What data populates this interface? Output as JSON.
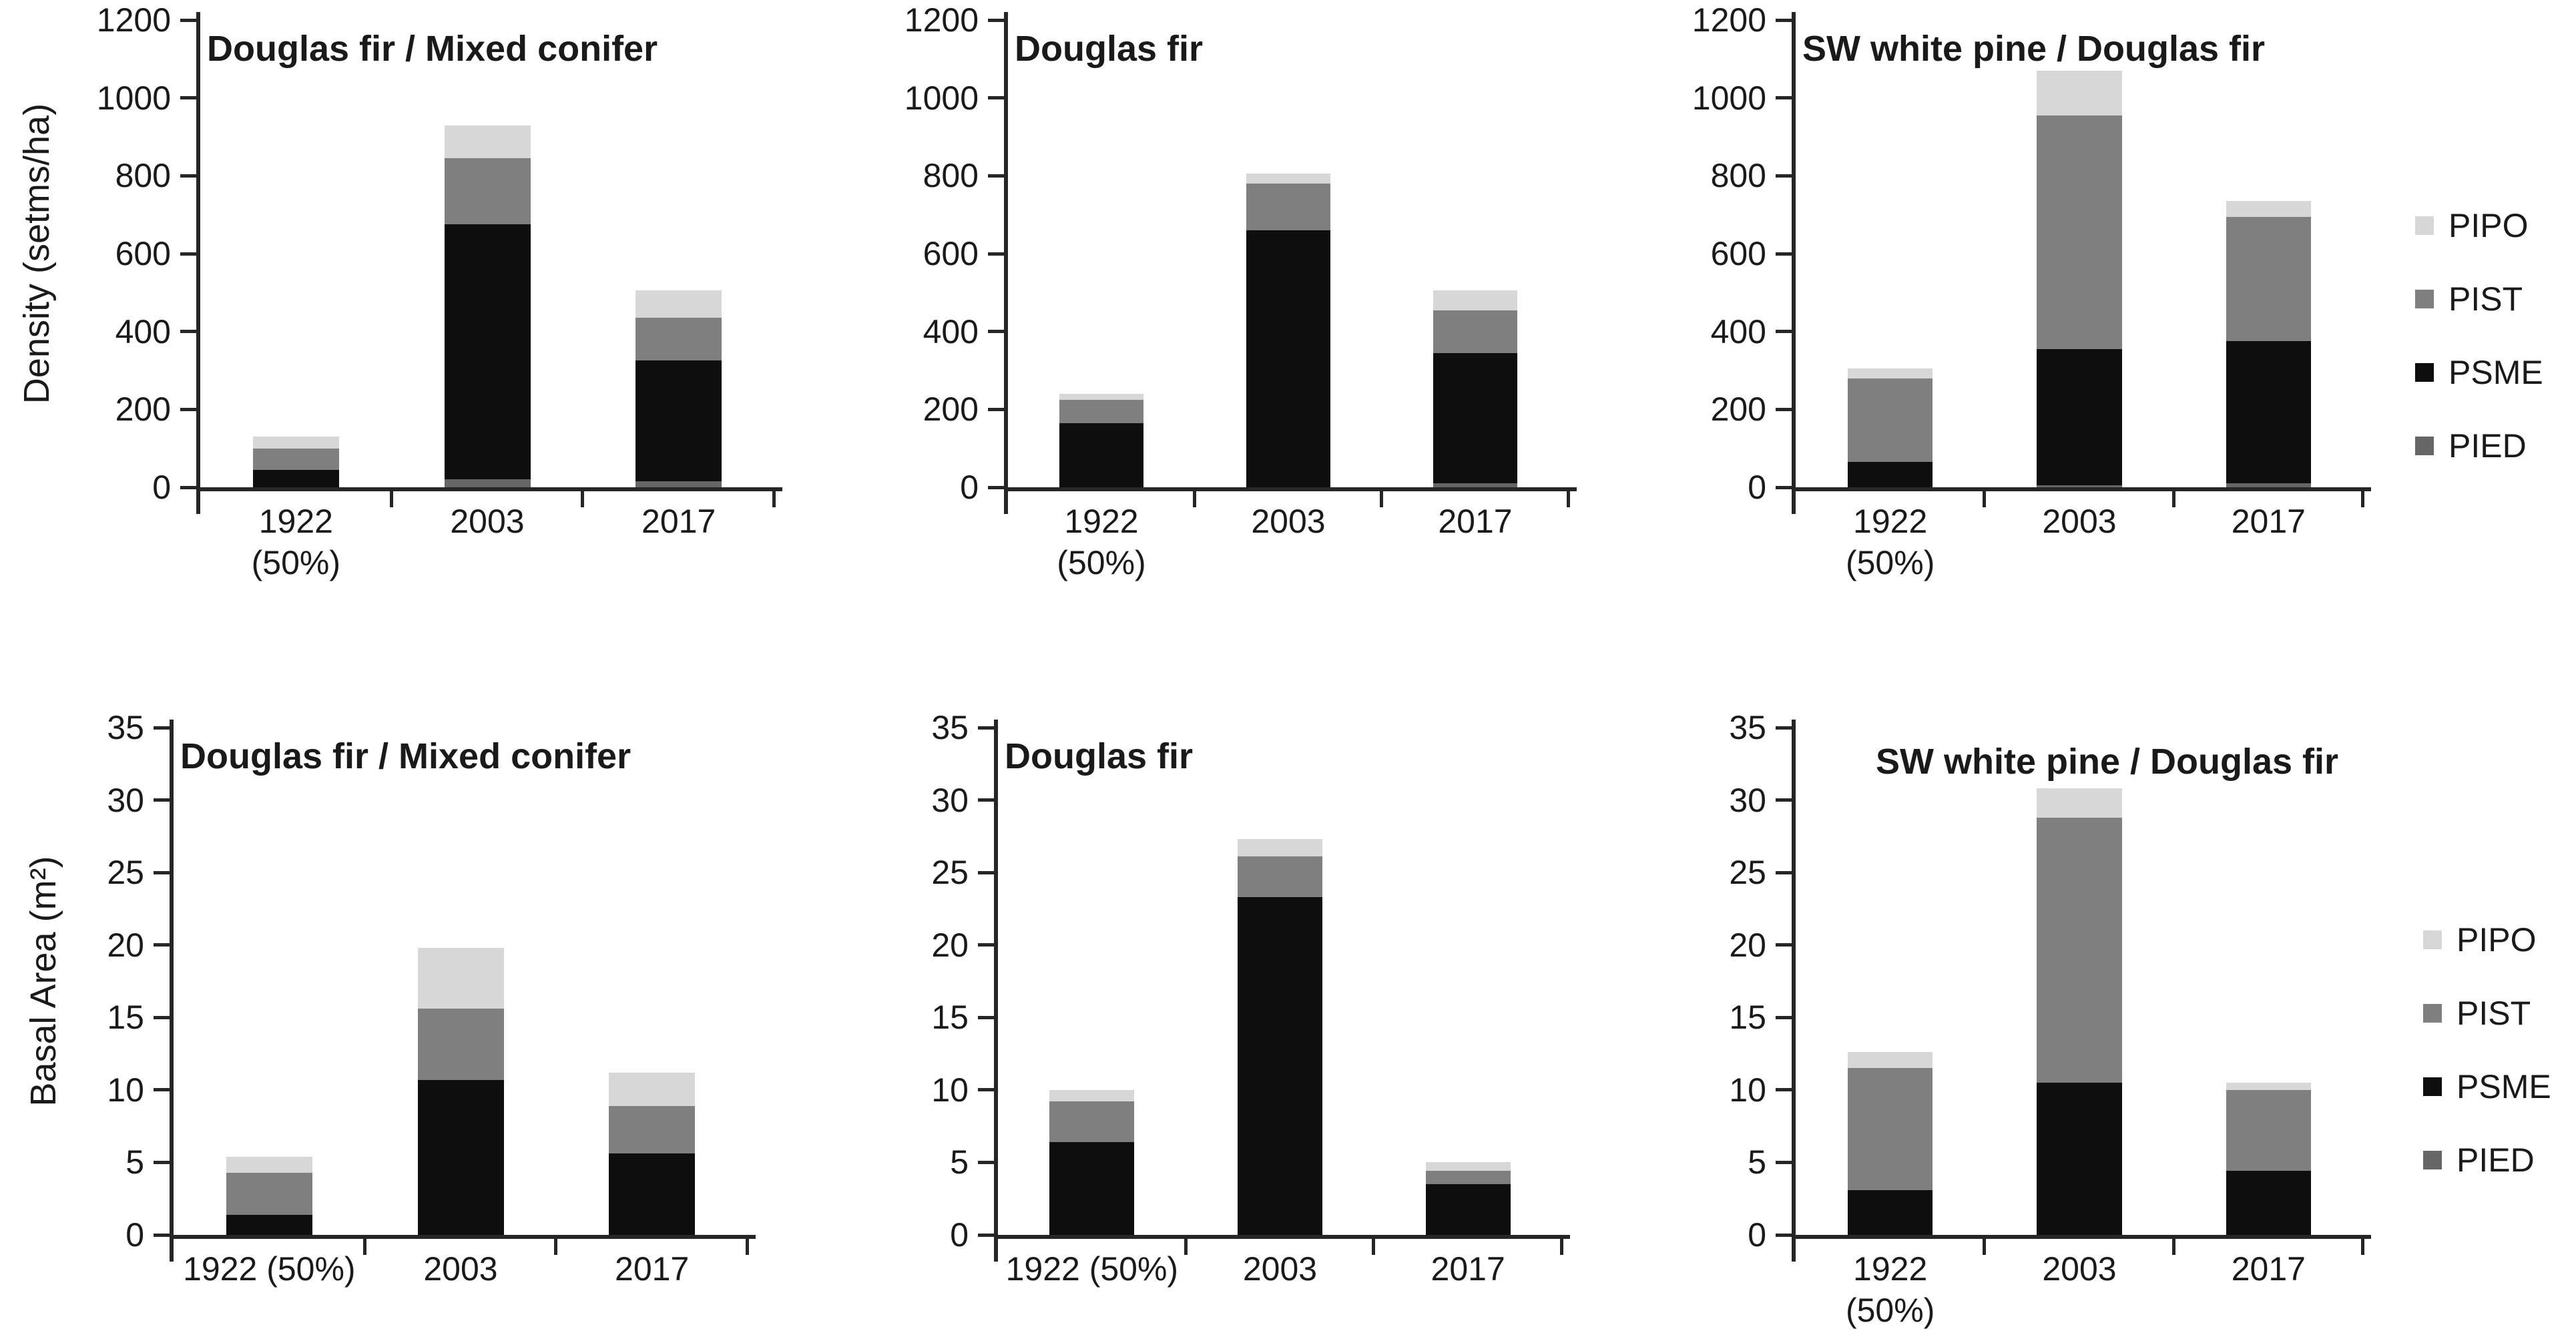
{
  "figure": {
    "background": "#ffffff"
  },
  "colors": {
    "PIPO": "#d7d7d7",
    "PIST": "#7f7f7f",
    "PSME": "#0e0e0e",
    "PIED": "#666666",
    "axis": "#262626",
    "text": "#1a1a1a"
  },
  "legend": {
    "items": [
      "PIPO",
      "PIST",
      "PSME",
      "PIED"
    ]
  },
  "chart_data": [
    {
      "type": "bar",
      "stacked": true,
      "title": "Douglas fir / Mixed conifer",
      "ylabel": "Density (setms/ha)",
      "xlabel": "",
      "ylim": [
        0,
        1200
      ],
      "yticks": [
        0,
        200,
        400,
        600,
        800,
        1000,
        1200
      ],
      "categories": [
        "1922\n(50%)",
        "2003",
        "2017"
      ],
      "series": [
        {
          "name": "PIED",
          "values": [
            0,
            20,
            15
          ]
        },
        {
          "name": "PSME",
          "values": [
            45,
            655,
            310
          ]
        },
        {
          "name": "PIST",
          "values": [
            55,
            170,
            110
          ]
        },
        {
          "name": "PIPO",
          "values": [
            30,
            85,
            70
          ]
        }
      ]
    },
    {
      "type": "bar",
      "stacked": true,
      "title": "Douglas fir",
      "ylabel": "",
      "xlabel": "",
      "ylim": [
        0,
        1200
      ],
      "yticks": [
        0,
        200,
        400,
        600,
        800,
        1000,
        1200
      ],
      "categories": [
        "1922\n(50%)",
        "2003",
        "2017"
      ],
      "series": [
        {
          "name": "PIED",
          "values": [
            0,
            0,
            10
          ]
        },
        {
          "name": "PSME",
          "values": [
            165,
            660,
            335
          ]
        },
        {
          "name": "PIST",
          "values": [
            60,
            120,
            110
          ]
        },
        {
          "name": "PIPO",
          "values": [
            15,
            25,
            50
          ]
        }
      ]
    },
    {
      "type": "bar",
      "stacked": true,
      "title": "SW white pine / Douglas fir",
      "ylabel": "",
      "xlabel": "",
      "ylim": [
        0,
        1200
      ],
      "yticks": [
        0,
        200,
        400,
        600,
        800,
        1000,
        1200
      ],
      "categories": [
        "1922\n(50%)",
        "2003",
        "2017"
      ],
      "series": [
        {
          "name": "PIED",
          "values": [
            0,
            5,
            10
          ]
        },
        {
          "name": "PSME",
          "values": [
            65,
            350,
            365
          ]
        },
        {
          "name": "PIST",
          "values": [
            215,
            600,
            320
          ]
        },
        {
          "name": "PIPO",
          "values": [
            25,
            115,
            40
          ]
        }
      ]
    },
    {
      "type": "bar",
      "stacked": true,
      "title": "Douglas fir / Mixed conifer",
      "ylabel": "Basal Area (m²)",
      "xlabel": "",
      "ylim": [
        0,
        35
      ],
      "yticks": [
        0,
        5,
        10,
        15,
        20,
        25,
        30,
        35
      ],
      "categories": [
        "1922 (50%)",
        "2003",
        "2017"
      ],
      "series": [
        {
          "name": "PIED",
          "values": [
            0,
            0,
            0
          ]
        },
        {
          "name": "PSME",
          "values": [
            1.4,
            10.7,
            5.6
          ]
        },
        {
          "name": "PIST",
          "values": [
            2.9,
            4.9,
            3.3
          ]
        },
        {
          "name": "PIPO",
          "values": [
            1.1,
            4.2,
            2.3
          ]
        }
      ]
    },
    {
      "type": "bar",
      "stacked": true,
      "title": "Douglas fir",
      "ylabel": "",
      "xlabel": "",
      "ylim": [
        0,
        35
      ],
      "yticks": [
        0,
        5,
        10,
        15,
        20,
        25,
        30,
        35
      ],
      "categories": [
        "1922 (50%)",
        "2003",
        "2017"
      ],
      "series": [
        {
          "name": "PIED",
          "values": [
            0,
            0,
            0
          ]
        },
        {
          "name": "PSME",
          "values": [
            6.4,
            23.3,
            3.5
          ]
        },
        {
          "name": "PIST",
          "values": [
            2.8,
            2.8,
            0.9
          ]
        },
        {
          "name": "PIPO",
          "values": [
            0.8,
            1.2,
            0.6
          ]
        }
      ]
    },
    {
      "type": "bar",
      "stacked": true,
      "title": "SW white pine / Douglas fir",
      "ylabel": "",
      "xlabel": "",
      "ylim": [
        0,
        35
      ],
      "yticks": [
        0,
        5,
        10,
        15,
        20,
        25,
        30,
        35
      ],
      "categories": [
        "1922\n(50%)",
        "2003",
        "2017"
      ],
      "series": [
        {
          "name": "PIED",
          "values": [
            0,
            0,
            0
          ]
        },
        {
          "name": "PSME",
          "values": [
            3.1,
            10.5,
            4.4
          ]
        },
        {
          "name": "PIST",
          "values": [
            8.4,
            18.3,
            5.6
          ]
        },
        {
          "name": "PIPO",
          "values": [
            1.1,
            2.0,
            0.5
          ]
        }
      ]
    }
  ]
}
